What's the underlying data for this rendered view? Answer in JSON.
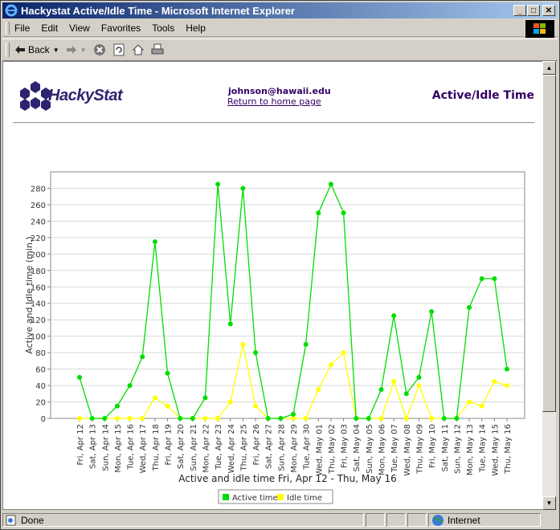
{
  "window": {
    "title": "Hackystat Active/Idle Time - Microsoft Internet Explorer"
  },
  "menu": [
    {
      "label": "File"
    },
    {
      "label": "Edit"
    },
    {
      "label": "View"
    },
    {
      "label": "Favorites"
    },
    {
      "label": "Tools"
    },
    {
      "label": "Help"
    }
  ],
  "toolbar": {
    "back_label": "Back"
  },
  "page": {
    "logo_text": "HackyStat",
    "user_email": "johnson@hawaii.edu",
    "home_link": "Return to home page",
    "title": "Active/Idle Time"
  },
  "status": {
    "text": "Done",
    "zone": "Internet"
  },
  "colors": {
    "active": "#00dd00",
    "idle": "#ffff00",
    "title_bar_start": "#0a246a",
    "title_bar_end": "#a6caf0",
    "page_text": "#330066"
  },
  "chart_data": {
    "type": "line",
    "title": "",
    "xlabel": "Active and idle time Fri, Apr 12 - Thu, May 16",
    "ylabel": "Active and Idle time (min.)",
    "ylim": [
      0,
      300
    ],
    "yticks": [
      0,
      20,
      40,
      60,
      80,
      100,
      120,
      140,
      160,
      180,
      200,
      220,
      240,
      260,
      280
    ],
    "grid": true,
    "legend": "bottom",
    "categories": [
      "Fri, Apr 12",
      "Sat, Apr 13",
      "Sun, Apr 14",
      "Mon, Apr 15",
      "Tue, Apr 16",
      "Wed, Apr 17",
      "Thu, Apr 18",
      "Fri, Apr 19",
      "Sat, Apr 20",
      "Sun, Apr 21",
      "Mon, Apr 22",
      "Tue, Apr 23",
      "Wed, Apr 24",
      "Thu, Apr 25",
      "Fri, Apr 26",
      "Sat, Apr 27",
      "Sun, Apr 28",
      "Mon, Apr 29",
      "Tue, Apr 30",
      "Wed, May 01",
      "Thu, May 02",
      "Fri, May 03",
      "Sat, May 04",
      "Sun, May 05",
      "Mon, May 06",
      "Tue, May 07",
      "Wed, May 08",
      "Thu, May 09",
      "Fri, May 10",
      "Sat, May 11",
      "Sun, May 12",
      "Mon, May 13",
      "Tue, May 14",
      "Wed, May 15",
      "Thu, May 16"
    ],
    "series": [
      {
        "name": "Active time",
        "color": "#00dd00",
        "values": [
          50,
          0,
          0,
          15,
          40,
          75,
          215,
          55,
          0,
          0,
          25,
          285,
          115,
          280,
          80,
          0,
          0,
          5,
          90,
          250,
          285,
          250,
          0,
          0,
          35,
          125,
          30,
          50,
          130,
          0,
          0,
          135,
          170,
          170,
          60
        ]
      },
      {
        "name": "Idle time",
        "color": "#ffff00",
        "values": [
          0,
          0,
          0,
          0,
          0,
          0,
          25,
          15,
          0,
          0,
          0,
          0,
          20,
          90,
          15,
          0,
          0,
          0,
          0,
          35,
          65,
          80,
          0,
          0,
          0,
          45,
          0,
          40,
          0,
          0,
          0,
          20,
          15,
          45,
          40
        ]
      }
    ]
  }
}
